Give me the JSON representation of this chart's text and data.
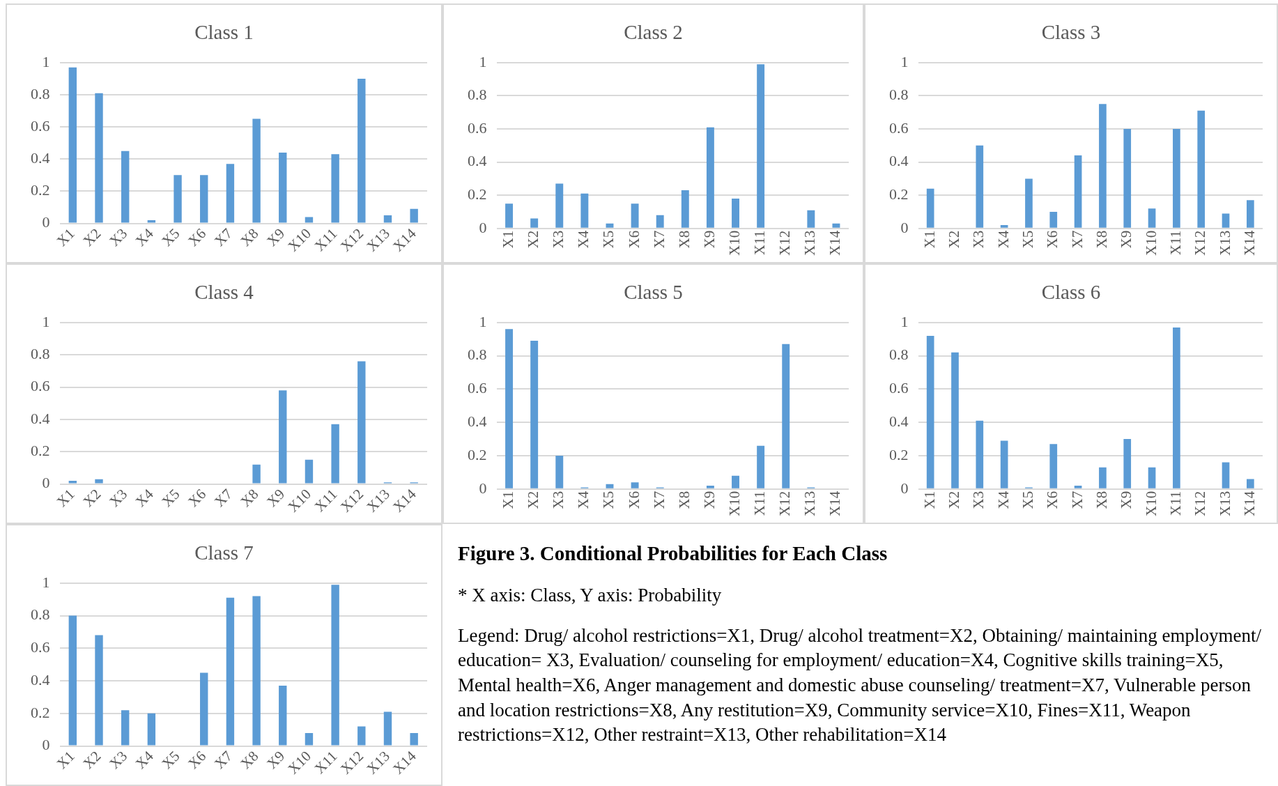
{
  "chart_data": [
    {
      "type": "bar",
      "title": "Class 1",
      "categories": [
        "X1",
        "X2",
        "X3",
        "X4",
        "X5",
        "X6",
        "X7",
        "X8",
        "X9",
        "X10",
        "X11",
        "X12",
        "X13",
        "X14"
      ],
      "values": [
        0.97,
        0.81,
        0.45,
        0.02,
        0.3,
        0.3,
        0.37,
        0.65,
        0.44,
        0.04,
        0.43,
        0.9,
        0.05,
        0.09
      ],
      "color": "#5b9bd5",
      "ylim": [
        0,
        1
      ],
      "yticks": [
        0,
        0.2,
        0.4,
        0.6,
        0.8,
        1
      ],
      "grid": "y"
    },
    {
      "type": "bar",
      "title": "Class 2",
      "categories": [
        "X1",
        "X2",
        "X3",
        "X4",
        "X5",
        "X6",
        "X7",
        "X8",
        "X9",
        "X10",
        "X11",
        "X12",
        "X13",
        "X14"
      ],
      "values": [
        0.15,
        0.06,
        0.27,
        0.21,
        0.03,
        0.15,
        0.08,
        0.23,
        0.61,
        0.18,
        0.99,
        0,
        0.11,
        0.03
      ],
      "color": "#5b9bd5",
      "ylim": [
        0,
        1
      ],
      "yticks": [
        0,
        0.2,
        0.4,
        0.6,
        0.8,
        1
      ],
      "grid": "y"
    },
    {
      "type": "bar",
      "title": "Class 3",
      "categories": [
        "X1",
        "X2",
        "X3",
        "X4",
        "X5",
        "X6",
        "X7",
        "X8",
        "X9",
        "X10",
        "X11",
        "X12",
        "X13",
        "X14"
      ],
      "values": [
        0.24,
        0,
        0.5,
        0.02,
        0.3,
        0.1,
        0.44,
        0.75,
        0.6,
        0.12,
        0.6,
        0.71,
        0.09,
        0.17
      ],
      "color": "#5b9bd5",
      "ylim": [
        0,
        1
      ],
      "yticks": [
        0,
        0.2,
        0.4,
        0.6,
        0.8,
        1
      ],
      "grid": "y"
    },
    {
      "type": "bar",
      "title": "Class 4",
      "categories": [
        "X1",
        "X2",
        "X3",
        "X4",
        "X5",
        "X6",
        "X7",
        "X8",
        "X9",
        "X10",
        "X11",
        "X12",
        "X13",
        "X14"
      ],
      "values": [
        0.02,
        0.03,
        0,
        0,
        0,
        0,
        0,
        0.12,
        0.58,
        0.15,
        0.37,
        0.76,
        0.01,
        0.01
      ],
      "color": "#5b9bd5",
      "ylim": [
        0,
        1
      ],
      "yticks": [
        0,
        0.2,
        0.4,
        0.6,
        0.8,
        1
      ],
      "grid": "y"
    },
    {
      "type": "bar",
      "title": "Class 5",
      "categories": [
        "X1",
        "X2",
        "X3",
        "X4",
        "X5",
        "X6",
        "X7",
        "X8",
        "X9",
        "X10",
        "X11",
        "X12",
        "X13",
        "X14"
      ],
      "values": [
        0.96,
        0.89,
        0.2,
        0.01,
        0.03,
        0.04,
        0.01,
        0,
        0.02,
        0.08,
        0.26,
        0.87,
        0.01,
        0
      ],
      "color": "#5b9bd5",
      "ylim": [
        0,
        1
      ],
      "yticks": [
        0,
        0.2,
        0.4,
        0.6,
        0.8,
        1
      ],
      "grid": "y"
    },
    {
      "type": "bar",
      "title": "Class 6",
      "categories": [
        "X1",
        "X2",
        "X3",
        "X4",
        "X5",
        "X6",
        "X7",
        "X8",
        "X9",
        "X10",
        "X11",
        "X12",
        "X13",
        "X14"
      ],
      "values": [
        0.92,
        0.82,
        0.41,
        0.29,
        0.01,
        0.27,
        0.02,
        0.13,
        0.3,
        0.13,
        0.97,
        0,
        0.16,
        0.06
      ],
      "color": "#5b9bd5",
      "ylim": [
        0,
        1
      ],
      "yticks": [
        0,
        0.2,
        0.4,
        0.6,
        0.8,
        1
      ],
      "grid": "y"
    },
    {
      "type": "bar",
      "title": "Class 7",
      "categories": [
        "X1",
        "X2",
        "X3",
        "X4",
        "X5",
        "X6",
        "X7",
        "X8",
        "X9",
        "X10",
        "X11",
        "X12",
        "X13",
        "X14"
      ],
      "values": [
        0.8,
        0.68,
        0.22,
        0.2,
        0,
        0.45,
        0.91,
        0.92,
        0.37,
        0.08,
        0.99,
        0.12,
        0.21,
        0.08
      ],
      "color": "#5b9bd5",
      "ylim": [
        0,
        1
      ],
      "yticks": [
        0,
        0.2,
        0.4,
        0.6,
        0.8,
        1
      ],
      "grid": "y"
    },
    {
      "type": "other",
      "title": "Figure 3. Conditional Probabilities for Each Class",
      "annotations": [
        "* X axis: Class, Y axis: Probability",
        "Legend: Drug/ alcohol restrictions=X1, Drug/ alcohol treatment=X2, Obtaining/ maintaining employment/ education= X3, Evaluation/ counseling for employment/ education=X4, Cognitive skills training=X5, Mental health=X6, Anger management and domestic abuse counseling/ treatment=X7, Vulnerable person and location restrictions=X8, Any restitution=X9, Community service=X10, Fines=X11, Weapon restrictions=X12, Other restraint=X13, Other rehabilitation=X14"
      ]
    }
  ]
}
